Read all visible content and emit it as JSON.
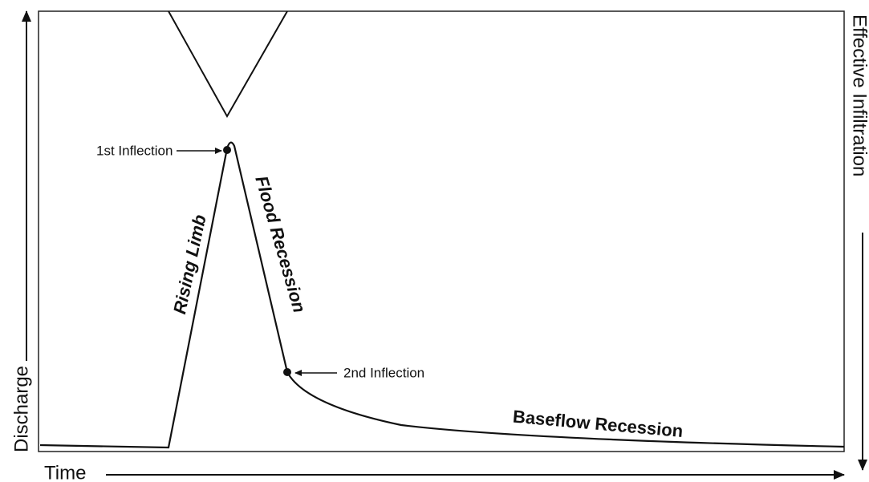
{
  "axes": {
    "y_label": "Discharge",
    "x_label": "Time",
    "y2_label": "Effective Infiltration"
  },
  "annotations": {
    "first_inflection": "1st Inflection",
    "second_inflection": "2nd Inflection",
    "rising_limb": "Rising Limb",
    "flood_recession": "Flood Recession",
    "baseflow_recession": "Baseflow Recession"
  }
}
